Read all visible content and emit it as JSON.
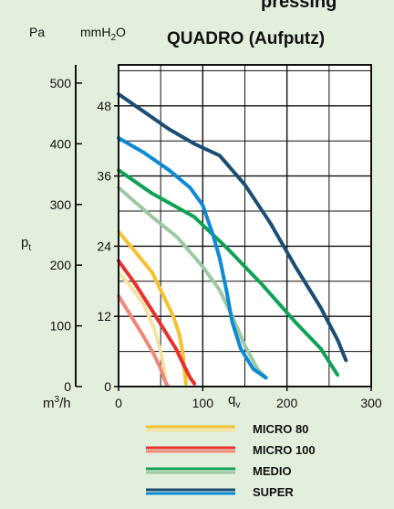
{
  "header": {
    "unit_pa": "Pa",
    "unit_mmh2o_prefix": "mmH",
    "unit_mmh2o_sub": "2",
    "unit_mmh2o_suffix": "O",
    "title": "QUADRO (Aufputz)",
    "partial_top_text": "pressing"
  },
  "chart_data": {
    "type": "line",
    "title": "QUADRO (Aufputz)",
    "xlabel_main": "q",
    "xlabel_sub": "v",
    "ylabel_main": "p",
    "ylabel_sub": "t",
    "x_unit_prefix": "m",
    "x_unit_sup": "3",
    "x_unit_suffix": "/h",
    "xlim": [
      0,
      300
    ],
    "ylim_mmh2o": [
      0,
      55
    ],
    "ylim_pa": [
      0,
      530
    ],
    "x_ticks": [
      "0",
      "100",
      "200",
      "300"
    ],
    "y_ticks_mmh2o": [
      "0",
      "12",
      "24",
      "36",
      "48"
    ],
    "y_ticks_pa": [
      "0",
      "100",
      "200",
      "300",
      "400",
      "500"
    ],
    "grid": true,
    "legend_position": "bottom",
    "series": [
      {
        "name": "MICRO 80",
        "color": "#f5c12e",
        "light_color": "#f5e3a5",
        "points": [
          [
            0,
            26.5
          ],
          [
            20,
            23
          ],
          [
            40,
            19.5
          ],
          [
            55,
            15
          ],
          [
            65,
            12
          ],
          [
            72,
            9
          ],
          [
            76,
            6
          ],
          [
            79,
            2
          ],
          [
            80,
            0.5
          ]
        ],
        "light_points": [
          [
            0,
            19.5
          ],
          [
            15,
            17
          ],
          [
            30,
            14
          ],
          [
            42,
            10
          ],
          [
            50,
            6
          ],
          [
            54,
            3
          ],
          [
            56,
            0.5
          ]
        ]
      },
      {
        "name": "MICRO 100",
        "color": "#e8312a",
        "light_color": "#ee8877",
        "points": [
          [
            0,
            21.5
          ],
          [
            20,
            17.5
          ],
          [
            40,
            13
          ],
          [
            55,
            9.5
          ],
          [
            68,
            6.5
          ],
          [
            78,
            3.5
          ],
          [
            85,
            1.5
          ],
          [
            90,
            0.5
          ]
        ],
        "light_points": [
          [
            0,
            15.5
          ],
          [
            15,
            12
          ],
          [
            30,
            8.5
          ],
          [
            42,
            5.5
          ],
          [
            50,
            3
          ],
          [
            55,
            1
          ],
          [
            58,
            0.2
          ]
        ]
      },
      {
        "name": "MEDIO",
        "color": "#0fa155",
        "light_color": "#9cc9a4",
        "points": [
          [
            0,
            37
          ],
          [
            40,
            33
          ],
          [
            90,
            29
          ],
          [
            130,
            23.5
          ],
          [
            170,
            17.5
          ],
          [
            210,
            11
          ],
          [
            240,
            6.5
          ],
          [
            260,
            2
          ]
        ],
        "light_points": [
          [
            0,
            34
          ],
          [
            40,
            29
          ],
          [
            70,
            25.5
          ],
          [
            100,
            20.5
          ],
          [
            120,
            16.5
          ],
          [
            135,
            12
          ],
          [
            150,
            7
          ],
          [
            165,
            3
          ],
          [
            175,
            1.5
          ]
        ]
      },
      {
        "name": "SUPER",
        "color": "#1b4d73",
        "light_color": "#0d8ad4",
        "points": [
          [
            0,
            50
          ],
          [
            30,
            47
          ],
          [
            60,
            44
          ],
          [
            90,
            41.5
          ],
          [
            120,
            39.5
          ],
          [
            150,
            34.5
          ],
          [
            180,
            28
          ],
          [
            210,
            20.5
          ],
          [
            240,
            13.5
          ],
          [
            260,
            8
          ],
          [
            270,
            4.5
          ]
        ],
        "light_points": [
          [
            0,
            42.5
          ],
          [
            30,
            40
          ],
          [
            60,
            37
          ],
          [
            85,
            34
          ],
          [
            100,
            31
          ],
          [
            112,
            26
          ],
          [
            120,
            22
          ],
          [
            128,
            16.5
          ],
          [
            135,
            11
          ],
          [
            145,
            6.5
          ],
          [
            160,
            3
          ],
          [
            175,
            1.5
          ]
        ]
      }
    ]
  },
  "colors": {
    "panel_bg": "#e3efdd",
    "plot_bg": "#ffffff",
    "grid": "#111111"
  }
}
